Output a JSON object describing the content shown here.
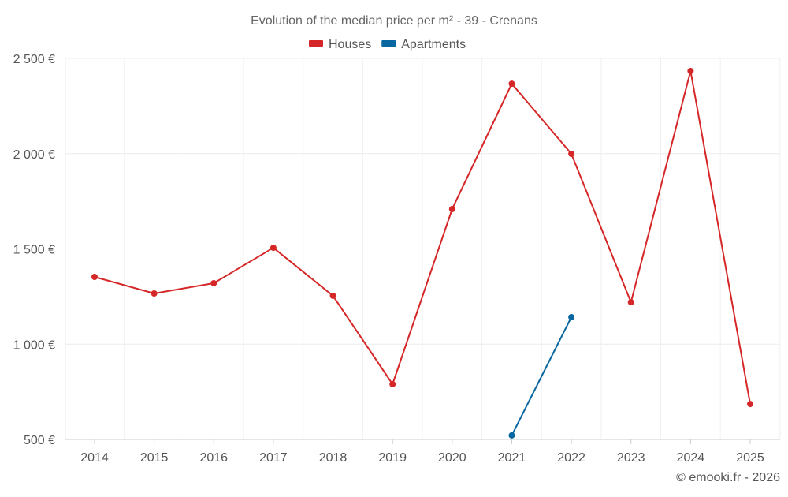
{
  "chart_data": {
    "type": "line",
    "title": "Evolution of the median price per m² - 39 - Crenans",
    "categories": [
      "2014",
      "2015",
      "2016",
      "2017",
      "2018",
      "2019",
      "2020",
      "2021",
      "2022",
      "2023",
      "2024",
      "2025"
    ],
    "series": [
      {
        "name": "Houses",
        "color": "#d62728",
        "values": [
          1353,
          1266,
          1320,
          1506,
          1254,
          790,
          1709,
          2367,
          1999,
          1220,
          2434,
          686
        ]
      },
      {
        "name": "Apartments",
        "color": "#0866a0",
        "values": [
          null,
          null,
          null,
          null,
          null,
          null,
          null,
          521,
          1142,
          null,
          null,
          null
        ]
      }
    ],
    "yticks": [
      500,
      1000,
      1500,
      2000,
      2500
    ],
    "ytick_labels": [
      "500 €",
      "1 000 €",
      "1 500 €",
      "2 000 €",
      "2 500 €"
    ],
    "ylim": [
      500,
      2500
    ],
    "xlabel": "",
    "ylabel": "",
    "grid": true,
    "legend_position": "top-center",
    "credit": "© emooki.fr - 2026"
  }
}
